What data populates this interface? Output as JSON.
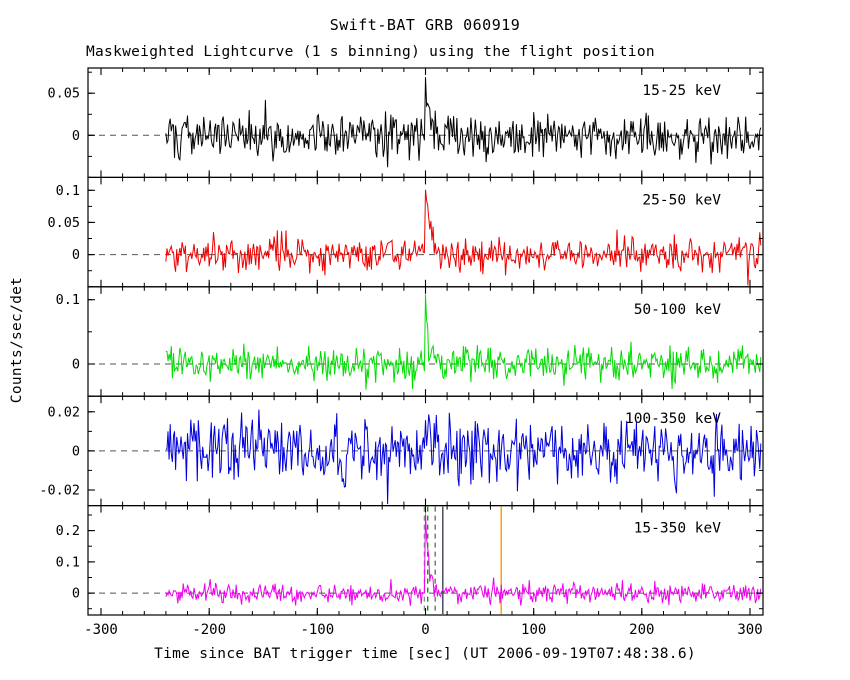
{
  "figure": {
    "title": "Swift-BAT GRB 060919",
    "subtitle": "Maskweighted Lightcurve (1 s binning) using the flight position",
    "xlabel": "Time since BAT trigger time [sec] (UT 2006-09-19T07:48:38.6)",
    "ylabel": "Counts/sec/det"
  },
  "chart_data": {
    "type": "line",
    "title": "Swift-BAT GRB 060919",
    "subtitle": "Maskweighted Lightcurve (1 s binning) using the flight position",
    "xlabel": "Time since BAT trigger time [sec] (UT 2006-09-19T07:48:38.6)",
    "ylabel": "Counts/sec/det",
    "bin_seconds": 1,
    "xlim": [
      -312,
      312
    ],
    "x_range_data": [
      -240,
      310
    ],
    "x_major_ticks": [
      -300,
      -200,
      -100,
      0,
      100,
      200,
      300
    ],
    "x_major_tick_labels": [
      "-300",
      "-200",
      "-100",
      "0",
      "100",
      "200",
      "300"
    ],
    "x_minor_step": 20,
    "grid": false,
    "legend_position": "in-panel-right",
    "panels": [
      {
        "label": "15-25 keV",
        "color": "#000000",
        "ylim": [
          -0.05,
          0.08
        ],
        "yticks": [
          0,
          0.05
        ],
        "ytick_labels": [
          "0",
          "0.05"
        ],
        "y_minor_step": 0.025,
        "baseline": 0,
        "noise_sigma": 0.013,
        "burst": {
          "t_peak": 0,
          "amplitude": 0.062,
          "decay_s": 4,
          "rise_s": 1
        },
        "seed": 101
      },
      {
        "label": "25-50 keV",
        "color": "#ee0000",
        "ylim": [
          -0.05,
          0.12
        ],
        "yticks": [
          0,
          0.05,
          0.1
        ],
        "ytick_labels": [
          "0",
          "0.05",
          "0.1"
        ],
        "y_minor_step": 0.025,
        "baseline": 0,
        "noise_sigma": 0.013,
        "burst": {
          "t_peak": 0,
          "amplitude": 0.1,
          "decay_s": 5,
          "rise_s": 1
        },
        "seed": 102
      },
      {
        "label": "50-100 keV",
        "color": "#00dd00",
        "ylim": [
          -0.05,
          0.12
        ],
        "yticks": [
          0,
          0.1
        ],
        "ytick_labels": [
          "0",
          "0.1"
        ],
        "y_minor_step": 0.05,
        "baseline": 0,
        "noise_sigma": 0.013,
        "burst": {
          "t_peak": 0,
          "amplitude": 0.1,
          "decay_s": 2.5,
          "rise_s": 1
        },
        "seed": 103
      },
      {
        "label": "100-350 keV",
        "color": "#0000dd",
        "ylim": [
          -0.028,
          0.028
        ],
        "yticks": [
          -0.02,
          0,
          0.02
        ],
        "ytick_labels": [
          "-0.02",
          "0",
          "0.02"
        ],
        "y_minor_step": 0.01,
        "baseline": 0,
        "noise_sigma": 0.008,
        "burst": {
          "t_peak": 0,
          "amplitude": 0.008,
          "decay_s": 3,
          "rise_s": 1
        },
        "seed": 104
      },
      {
        "label": "15-350 keV",
        "color": "#ee00ee",
        "ylim": [
          -0.07,
          0.28
        ],
        "yticks": [
          0,
          0.1,
          0.2
        ],
        "ytick_labels": [
          "0",
          "0.1",
          "0.2"
        ],
        "y_minor_step": 0.05,
        "baseline": 0,
        "noise_sigma": 0.016,
        "burst": {
          "t_peak": 0,
          "amplitude": 0.24,
          "decay_s": 4,
          "rise_s": 1
        },
        "seed": 105,
        "vlines": [
          {
            "t": -1,
            "color": "#909090",
            "dashed": true
          },
          {
            "t": 2,
            "color": "#00a000",
            "dashed": true
          },
          {
            "t": 9,
            "color": "#707070",
            "dashed": true
          },
          {
            "t": 16,
            "color": "#404050",
            "dashed": false
          },
          {
            "t": 70,
            "color": "#ff9900",
            "dashed": false
          }
        ]
      }
    ],
    "zero_line": {
      "dashed": true,
      "color": "#555555"
    }
  }
}
